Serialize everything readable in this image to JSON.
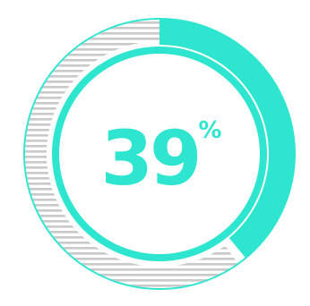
{
  "chart_data": {
    "type": "pie",
    "value": 39,
    "percent_label": "39",
    "percent_sign": "%",
    "slices": [
      {
        "value": 39
      },
      {
        "value": 61
      }
    ]
  },
  "colors": {
    "accent": "#2ee6cf",
    "stripe": "#c9c9c9",
    "background": "#ffffff"
  }
}
